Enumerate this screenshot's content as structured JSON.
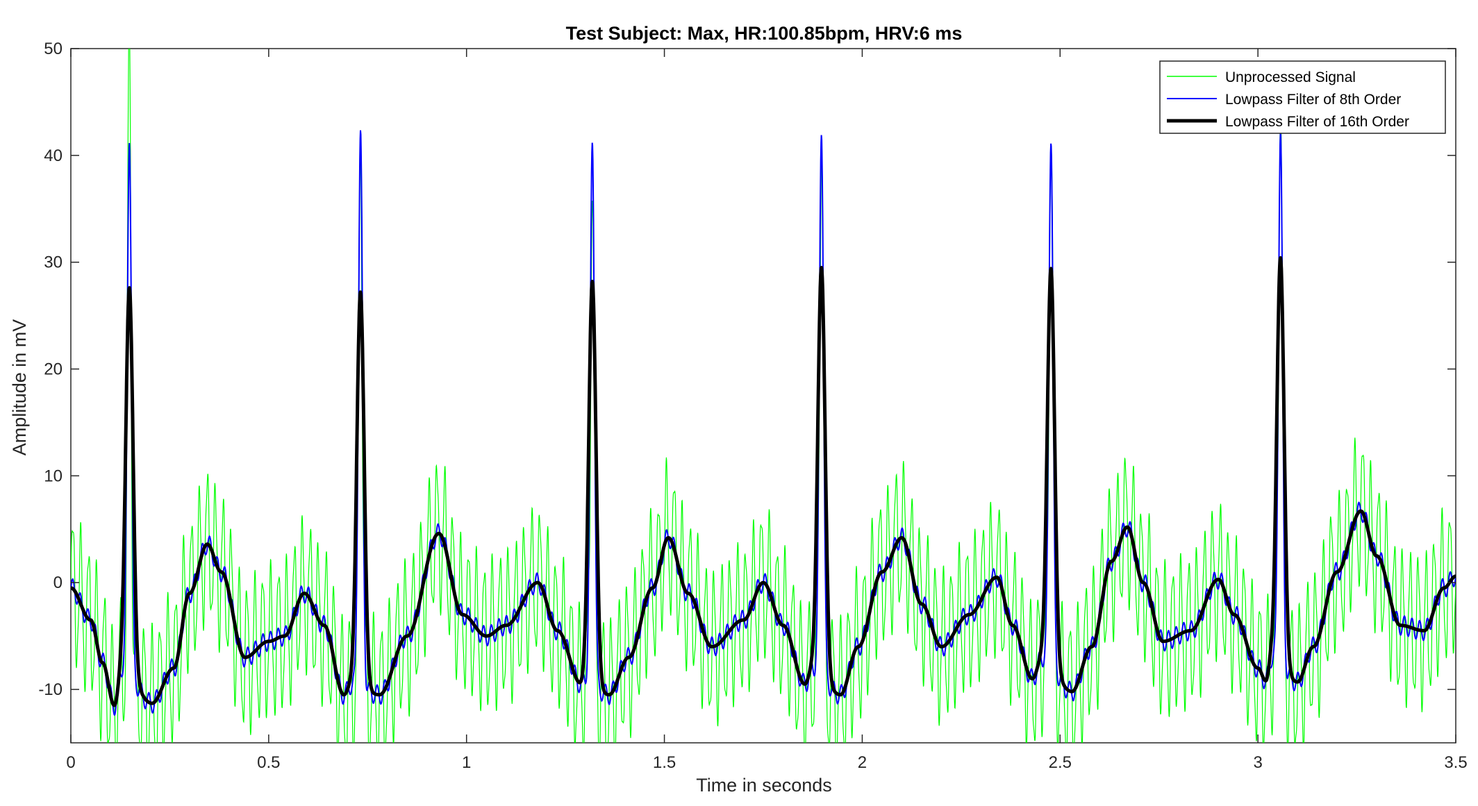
{
  "chart_data": {
    "type": "line",
    "title": "Test Subject: Max, HR:100.85bpm, HRV:6 ms",
    "xlabel": "Time in seconds",
    "ylabel": "Amplitude in mV",
    "xlim": [
      0,
      3.5
    ],
    "ylim": [
      -15,
      50
    ],
    "xticks": [
      0,
      0.5,
      1,
      1.5,
      2,
      2.5,
      3,
      3.5
    ],
    "xtick_labels": [
      "0",
      "0.5",
      "1",
      "1.5",
      "2",
      "2.5",
      "3",
      "3.5"
    ],
    "yticks": [
      -10,
      0,
      10,
      20,
      30,
      40,
      50
    ],
    "ytick_labels": [
      "-10",
      "0",
      "10",
      "20",
      "30",
      "40",
      "50"
    ],
    "grid": false,
    "legend_position": "top-right",
    "series": [
      {
        "name": "Unprocessed Signal",
        "color": "#00ff00",
        "r_peak_amplitudes": [
          49.6,
          44.3,
          39.5,
          45.0,
          46.7,
          49.0
        ],
        "noise_amplitude": 6.5
      },
      {
        "name": "Lowpass Filter of 8th Order",
        "color": "#0000ff",
        "r_peak_amplitudes": [
          42.0,
          42.0,
          41.4,
          42.6,
          42.0,
          42.3
        ],
        "noise_amplitude": 1.0
      },
      {
        "name": "Lowpass Filter of 16th Order",
        "color": "#000000",
        "r_peak_amplitudes": [
          27.6,
          27.2,
          28.2,
          29.5,
          29.4,
          30.4
        ]
      }
    ],
    "r_peak_times": [
      0.148,
      0.732,
      1.318,
      1.897,
      2.477,
      3.057
    ],
    "baseline_points": [
      [
        0.0,
        -0.5
      ],
      [
        0.05,
        -3.5
      ],
      [
        0.08,
        -7.5
      ],
      [
        0.11,
        -11.5
      ],
      [
        0.13,
        -8.0
      ],
      [
        0.205,
        -11.3
      ],
      [
        0.26,
        -8.0
      ],
      [
        0.3,
        -1.0
      ],
      [
        0.345,
        3.6
      ],
      [
        0.38,
        1.0
      ],
      [
        0.44,
        -7.0
      ],
      [
        0.5,
        -5.5
      ],
      [
        0.54,
        -5.0
      ],
      [
        0.59,
        -1.0
      ],
      [
        0.64,
        -4.0
      ],
      [
        0.69,
        -10.5
      ],
      [
        0.71,
        -9.5
      ],
      [
        0.78,
        -10.5
      ],
      [
        0.85,
        -5.0
      ],
      [
        0.93,
        4.6
      ],
      [
        0.99,
        -3.0
      ],
      [
        1.05,
        -5.0
      ],
      [
        1.1,
        -4.0
      ],
      [
        1.18,
        0.0
      ],
      [
        1.23,
        -4.5
      ],
      [
        1.29,
        -9.5
      ],
      [
        1.3,
        -9.0
      ],
      [
        1.36,
        -10.5
      ],
      [
        1.41,
        -7.0
      ],
      [
        1.47,
        -0.5
      ],
      [
        1.51,
        4.2
      ],
      [
        1.56,
        -1.0
      ],
      [
        1.62,
        -6.0
      ],
      [
        1.7,
        -3.5
      ],
      [
        1.75,
        0.0
      ],
      [
        1.8,
        -4.0
      ],
      [
        1.855,
        -9.5
      ],
      [
        1.875,
        -8.0
      ],
      [
        1.945,
        -10.5
      ],
      [
        1.99,
        -6.0
      ],
      [
        2.05,
        1.0
      ],
      [
        2.1,
        4.2
      ],
      [
        2.15,
        -2.0
      ],
      [
        2.2,
        -6.0
      ],
      [
        2.27,
        -3.0
      ],
      [
        2.34,
        0.5
      ],
      [
        2.38,
        -4.0
      ],
      [
        2.43,
        -9.0
      ],
      [
        2.455,
        -7.0
      ],
      [
        2.53,
        -10.2
      ],
      [
        2.58,
        -6.0
      ],
      [
        2.63,
        2.0
      ],
      [
        2.67,
        5.2
      ],
      [
        2.71,
        0.0
      ],
      [
        2.76,
        -5.5
      ],
      [
        2.83,
        -4.5
      ],
      [
        2.9,
        0.3
      ],
      [
        2.94,
        -3.0
      ],
      [
        3.0,
        -8.0
      ],
      [
        3.02,
        -9.2
      ],
      [
        3.035,
        -7.0
      ],
      [
        3.1,
        -9.3
      ],
      [
        3.14,
        -6.0
      ],
      [
        3.2,
        1.0
      ],
      [
        3.26,
        6.7
      ],
      [
        3.3,
        2.5
      ],
      [
        3.36,
        -4.0
      ],
      [
        3.42,
        -4.5
      ],
      [
        3.47,
        -0.5
      ],
      [
        3.5,
        0.6
      ]
    ]
  }
}
